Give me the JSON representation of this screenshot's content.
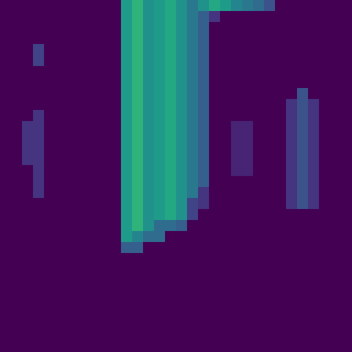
{
  "chart_data": {
    "type": "heatmap",
    "color": "viridis",
    "tick_labels": false,
    "grid": false,
    "zlim": [
      0,
      1
    ],
    "cells": [
      [
        0,
        0,
        0,
        0,
        0,
        0,
        0,
        0,
        0,
        0,
        0,
        0.55,
        0.65,
        0.5,
        0.55,
        0.6,
        0.5,
        0.4,
        0.5,
        0.6,
        0.55,
        0.45,
        0.4,
        0.35,
        0.25,
        0,
        0,
        0,
        0,
        0,
        0,
        0
      ],
      [
        0,
        0,
        0,
        0,
        0,
        0,
        0,
        0,
        0,
        0,
        0,
        0.55,
        0.65,
        0.5,
        0.55,
        0.6,
        0.5,
        0.4,
        0.3,
        0.15,
        0,
        0,
        0,
        0,
        0,
        0,
        0,
        0,
        0,
        0,
        0,
        0
      ],
      [
        0,
        0,
        0,
        0,
        0,
        0,
        0,
        0,
        0,
        0,
        0,
        0.55,
        0.65,
        0.5,
        0.55,
        0.6,
        0.5,
        0.4,
        0.3,
        0,
        0,
        0,
        0,
        0,
        0,
        0,
        0,
        0,
        0,
        0,
        0,
        0
      ],
      [
        0,
        0,
        0,
        0,
        0,
        0,
        0,
        0,
        0,
        0,
        0,
        0.55,
        0.65,
        0.5,
        0.55,
        0.6,
        0.5,
        0.4,
        0.3,
        0,
        0,
        0,
        0,
        0,
        0,
        0,
        0,
        0,
        0,
        0,
        0,
        0
      ],
      [
        0,
        0,
        0,
        0.2,
        0,
        0,
        0,
        0,
        0,
        0,
        0,
        0.55,
        0.65,
        0.5,
        0.55,
        0.6,
        0.5,
        0.4,
        0.3,
        0,
        0,
        0,
        0,
        0,
        0,
        0,
        0,
        0,
        0,
        0,
        0,
        0
      ],
      [
        0,
        0,
        0,
        0.2,
        0,
        0,
        0,
        0,
        0,
        0,
        0,
        0.55,
        0.65,
        0.5,
        0.55,
        0.6,
        0.5,
        0.4,
        0.3,
        0,
        0,
        0,
        0,
        0,
        0,
        0,
        0,
        0,
        0,
        0,
        0,
        0
      ],
      [
        0,
        0,
        0,
        0,
        0,
        0,
        0,
        0,
        0,
        0,
        0,
        0.55,
        0.65,
        0.5,
        0.55,
        0.6,
        0.5,
        0.4,
        0.3,
        0,
        0,
        0,
        0,
        0,
        0,
        0,
        0,
        0,
        0,
        0,
        0,
        0
      ],
      [
        0,
        0,
        0,
        0,
        0,
        0,
        0,
        0,
        0,
        0,
        0,
        0.55,
        0.65,
        0.5,
        0.55,
        0.6,
        0.5,
        0.4,
        0.3,
        0,
        0,
        0,
        0,
        0,
        0,
        0,
        0,
        0,
        0,
        0,
        0,
        0
      ],
      [
        0,
        0,
        0,
        0,
        0,
        0,
        0,
        0,
        0,
        0,
        0,
        0.55,
        0.65,
        0.5,
        0.55,
        0.6,
        0.5,
        0.4,
        0.3,
        0,
        0,
        0,
        0,
        0,
        0,
        0,
        0,
        0.25,
        0,
        0,
        0,
        0
      ],
      [
        0,
        0,
        0,
        0,
        0,
        0,
        0,
        0,
        0,
        0,
        0,
        0.55,
        0.65,
        0.5,
        0.55,
        0.6,
        0.5,
        0.4,
        0.3,
        0,
        0,
        0,
        0,
        0,
        0,
        0,
        0.15,
        0.25,
        0.15,
        0,
        0,
        0
      ],
      [
        0,
        0,
        0,
        0.15,
        0,
        0,
        0,
        0,
        0,
        0,
        0,
        0.55,
        0.65,
        0.5,
        0.55,
        0.6,
        0.5,
        0.4,
        0.3,
        0,
        0,
        0,
        0,
        0,
        0,
        0,
        0.15,
        0.25,
        0.15,
        0,
        0,
        0
      ],
      [
        0,
        0,
        0.15,
        0.15,
        0,
        0,
        0,
        0,
        0,
        0,
        0,
        0.55,
        0.65,
        0.5,
        0.55,
        0.6,
        0.5,
        0.4,
        0.3,
        0,
        0,
        0.1,
        0.1,
        0,
        0,
        0,
        0.15,
        0.25,
        0.15,
        0,
        0,
        0
      ],
      [
        0,
        0,
        0.15,
        0.15,
        0,
        0,
        0,
        0,
        0,
        0,
        0,
        0.55,
        0.65,
        0.5,
        0.55,
        0.6,
        0.5,
        0.4,
        0.3,
        0,
        0,
        0.1,
        0.1,
        0,
        0,
        0,
        0.15,
        0.25,
        0.15,
        0,
        0,
        0
      ],
      [
        0,
        0,
        0.15,
        0.15,
        0,
        0,
        0,
        0,
        0,
        0,
        0,
        0.55,
        0.65,
        0.5,
        0.55,
        0.6,
        0.5,
        0.4,
        0.3,
        0,
        0,
        0.1,
        0.1,
        0,
        0,
        0,
        0.15,
        0.25,
        0.15,
        0,
        0,
        0
      ],
      [
        0,
        0,
        0.15,
        0.15,
        0,
        0,
        0,
        0,
        0,
        0,
        0,
        0.55,
        0.65,
        0.5,
        0.55,
        0.6,
        0.5,
        0.4,
        0.3,
        0,
        0,
        0.1,
        0.1,
        0,
        0,
        0,
        0.15,
        0.25,
        0.15,
        0,
        0,
        0
      ],
      [
        0,
        0,
        0,
        0.15,
        0,
        0,
        0,
        0,
        0,
        0,
        0,
        0.55,
        0.65,
        0.5,
        0.55,
        0.6,
        0.5,
        0.4,
        0.3,
        0,
        0,
        0.1,
        0.1,
        0,
        0,
        0,
        0.15,
        0.25,
        0.15,
        0,
        0,
        0
      ],
      [
        0,
        0,
        0,
        0.15,
        0,
        0,
        0,
        0,
        0,
        0,
        0,
        0.55,
        0.65,
        0.5,
        0.55,
        0.6,
        0.5,
        0.4,
        0.3,
        0,
        0,
        0,
        0,
        0,
        0,
        0,
        0.15,
        0.25,
        0.15,
        0,
        0,
        0
      ],
      [
        0,
        0,
        0,
        0.15,
        0,
        0,
        0,
        0,
        0,
        0,
        0,
        0.55,
        0.65,
        0.5,
        0.55,
        0.6,
        0.5,
        0.4,
        0.15,
        0,
        0,
        0,
        0,
        0,
        0,
        0,
        0.15,
        0.25,
        0.15,
        0,
        0,
        0
      ],
      [
        0,
        0,
        0,
        0,
        0,
        0,
        0,
        0,
        0,
        0,
        0,
        0.55,
        0.65,
        0.5,
        0.55,
        0.6,
        0.5,
        0.2,
        0.15,
        0,
        0,
        0,
        0,
        0,
        0,
        0,
        0.15,
        0.25,
        0.15,
        0,
        0,
        0
      ],
      [
        0,
        0,
        0,
        0,
        0,
        0,
        0,
        0,
        0,
        0,
        0,
        0.55,
        0.65,
        0.5,
        0.55,
        0.6,
        0.5,
        0.2,
        0,
        0,
        0,
        0,
        0,
        0,
        0,
        0,
        0,
        0,
        0,
        0,
        0,
        0
      ],
      [
        0,
        0,
        0,
        0,
        0,
        0,
        0,
        0,
        0,
        0,
        0,
        0.55,
        0.65,
        0.5,
        0.35,
        0.35,
        0.3,
        0,
        0,
        0,
        0,
        0,
        0,
        0,
        0,
        0,
        0,
        0,
        0,
        0,
        0,
        0
      ],
      [
        0,
        0,
        0,
        0,
        0,
        0,
        0,
        0,
        0,
        0,
        0,
        0.55,
        0.45,
        0.35,
        0.35,
        0,
        0,
        0,
        0,
        0,
        0,
        0,
        0,
        0,
        0,
        0,
        0,
        0,
        0,
        0,
        0,
        0
      ],
      [
        0,
        0,
        0,
        0,
        0,
        0,
        0,
        0,
        0,
        0,
        0,
        0.3,
        0.3,
        0,
        0,
        0,
        0,
        0,
        0,
        0,
        0,
        0,
        0,
        0,
        0,
        0,
        0,
        0,
        0,
        0,
        0,
        0
      ],
      [
        0,
        0,
        0,
        0,
        0,
        0,
        0,
        0,
        0,
        0,
        0,
        0,
        0,
        0,
        0,
        0,
        0,
        0,
        0,
        0,
        0,
        0,
        0,
        0,
        0,
        0,
        0,
        0,
        0,
        0,
        0,
        0
      ],
      [
        0,
        0,
        0,
        0,
        0,
        0,
        0,
        0,
        0,
        0,
        0,
        0,
        0,
        0,
        0,
        0,
        0,
        0,
        0,
        0,
        0,
        0,
        0,
        0,
        0,
        0,
        0,
        0,
        0,
        0,
        0,
        0
      ],
      [
        0,
        0,
        0,
        0,
        0,
        0,
        0,
        0,
        0,
        0,
        0,
        0,
        0,
        0,
        0,
        0,
        0,
        0,
        0,
        0,
        0,
        0,
        0,
        0,
        0,
        0,
        0,
        0,
        0,
        0,
        0,
        0
      ],
      [
        0,
        0,
        0,
        0,
        0,
        0,
        0,
        0,
        0,
        0,
        0,
        0,
        0,
        0,
        0,
        0,
        0,
        0,
        0,
        0,
        0,
        0,
        0,
        0,
        0,
        0,
        0,
        0,
        0,
        0,
        0,
        0
      ],
      [
        0,
        0,
        0,
        0,
        0,
        0,
        0,
        0,
        0,
        0,
        0,
        0,
        0,
        0,
        0,
        0,
        0,
        0,
        0,
        0,
        0,
        0,
        0,
        0,
        0,
        0,
        0,
        0,
        0,
        0,
        0,
        0
      ],
      [
        0,
        0,
        0,
        0,
        0,
        0,
        0,
        0,
        0,
        0,
        0,
        0,
        0,
        0,
        0,
        0,
        0,
        0,
        0,
        0,
        0,
        0,
        0,
        0,
        0,
        0,
        0,
        0,
        0,
        0,
        0,
        0
      ],
      [
        0,
        0,
        0,
        0,
        0,
        0,
        0,
        0,
        0,
        0,
        0,
        0,
        0,
        0,
        0,
        0,
        0,
        0,
        0,
        0,
        0,
        0,
        0,
        0,
        0,
        0,
        0,
        0,
        0,
        0,
        0,
        0
      ],
      [
        0,
        0,
        0,
        0,
        0,
        0,
        0,
        0,
        0,
        0,
        0,
        0,
        0,
        0,
        0,
        0,
        0,
        0,
        0,
        0,
        0,
        0,
        0,
        0,
        0,
        0,
        0,
        0,
        0,
        0,
        0,
        0
      ],
      [
        0,
        0,
        0,
        0,
        0,
        0,
        0,
        0,
        0,
        0,
        0,
        0,
        0,
        0,
        0,
        0,
        0,
        0,
        0,
        0,
        0,
        0,
        0,
        0,
        0,
        0,
        0,
        0,
        0,
        0,
        0,
        0
      ]
    ]
  }
}
